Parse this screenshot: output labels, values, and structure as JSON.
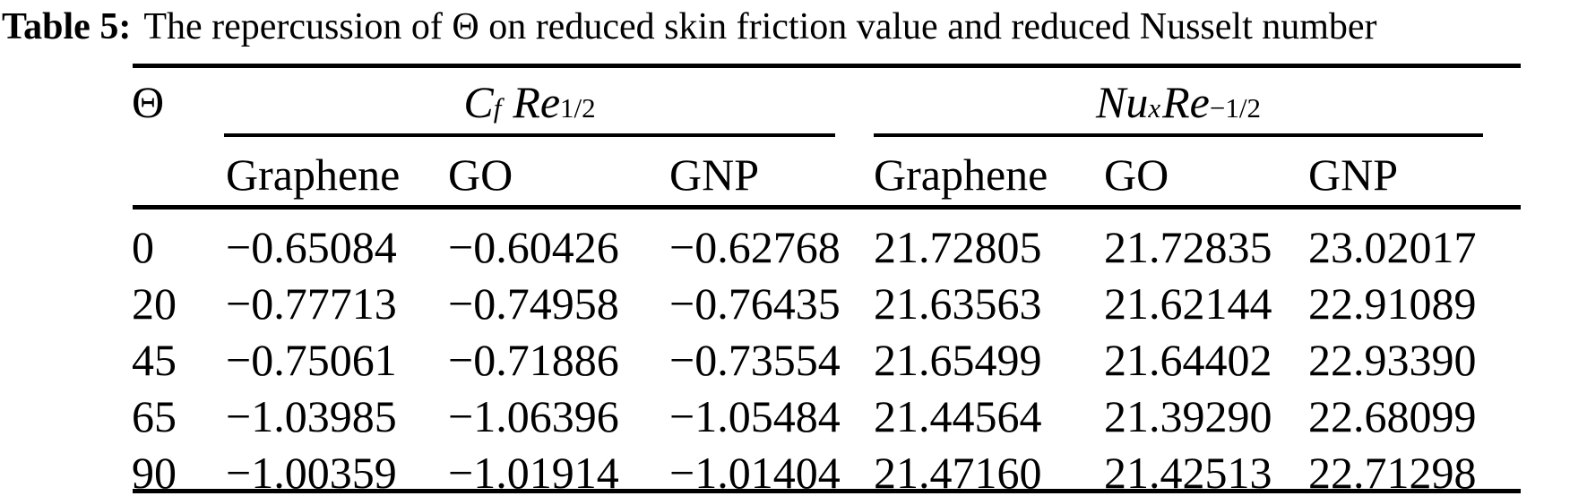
{
  "caption": {
    "label": "Table 5:",
    "text": "The repercussion of Θ on reduced skin friction value and reduced Nusselt number"
  },
  "table": {
    "corner_header": "Θ",
    "group_headers": {
      "cf": {
        "base": "C",
        "base_sub": "f",
        "factor": "Re",
        "factor_sup": "1/2"
      },
      "nu": {
        "base": "Nu",
        "base_sub": "x",
        "factor": "Re",
        "factor_sup": "−1/2"
      }
    },
    "subheaders": [
      "Graphene",
      "GO",
      "GNP",
      "Graphene",
      "GO",
      "GNP"
    ],
    "rows": [
      {
        "theta": "0",
        "cf": [
          "−0.65084",
          "−0.60426",
          "−0.62768"
        ],
        "nu": [
          "21.72805",
          "21.72835",
          "23.02017"
        ]
      },
      {
        "theta": "20",
        "cf": [
          "−0.77713",
          "−0.74958",
          "−0.76435"
        ],
        "nu": [
          "21.63563",
          "21.62144",
          "22.91089"
        ]
      },
      {
        "theta": "45",
        "cf": [
          "−0.75061",
          "−0.71886",
          "−0.73554"
        ],
        "nu": [
          "21.65499",
          "21.64402",
          "22.93390"
        ]
      },
      {
        "theta": "65",
        "cf": [
          "−1.03985",
          "−1.06396",
          "−1.05484"
        ],
        "nu": [
          "21.44564",
          "21.39290",
          "22.68099"
        ]
      },
      {
        "theta": "90",
        "cf": [
          "−1.00359",
          "−1.01914",
          "−1.01404"
        ],
        "nu": [
          "21.47160",
          "21.42513",
          "22.71298"
        ]
      }
    ],
    "colors": {
      "text": "#000000",
      "background": "#ffffff",
      "rule": "#000000"
    }
  }
}
